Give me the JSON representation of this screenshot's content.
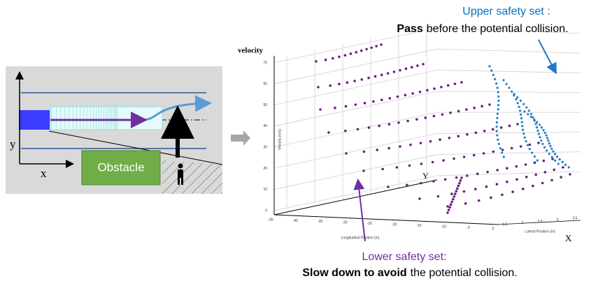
{
  "left_panel": {
    "obstacle": "Obstacle",
    "x_axis": "x",
    "y_axis": "y"
  },
  "plot": {
    "z_title": "velocity",
    "z_ticks": [
      "70",
      "60",
      "50",
      "40",
      "30",
      "20",
      "10",
      "0"
    ],
    "x_ticks": [
      "-45",
      "-40",
      "-35",
      "-30",
      "-25",
      "-20",
      "-15",
      "-10",
      "-5",
      "0"
    ],
    "lateral_ticks": [
      "1.5",
      "2",
      "2.5",
      "3",
      "3.5"
    ],
    "velocity_title": "Velocity (m/s)",
    "x_axis_title": "Longitudinal Position (m)",
    "lateral_title": "Lateral Position (m)",
    "x_axis": "X",
    "y_axis": "Y"
  },
  "annotations": {
    "upper": {
      "title": "Upper safety set :",
      "bold": "Pass",
      "rest": "before the potential collision."
    },
    "lower": {
      "title": "Lower safety set:",
      "bold": "Slow down to avoid",
      "rest": "the potential collision."
    }
  }
}
